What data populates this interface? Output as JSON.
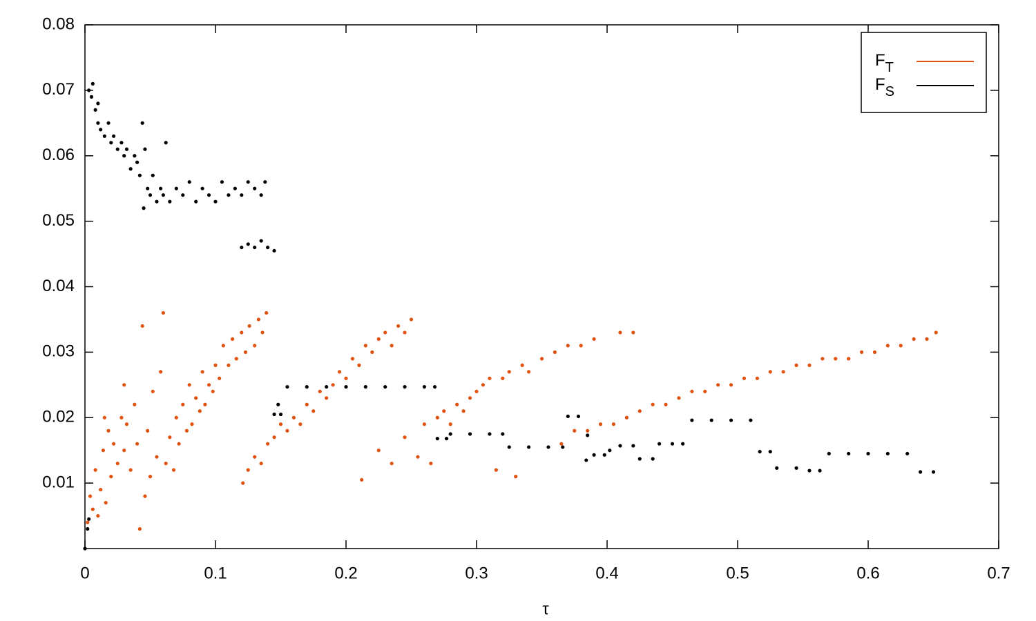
{
  "chart_data": {
    "type": "scatter",
    "x_label": "τ",
    "xlim": [
      0,
      0.7
    ],
    "xticks": [
      0,
      0.1,
      0.2,
      0.3,
      0.4,
      0.5,
      0.6,
      0.7
    ],
    "ylim": [
      0,
      0.08
    ],
    "yticks": [
      0.01,
      0.02,
      0.03,
      0.04,
      0.05,
      0.06,
      0.07,
      0.08
    ],
    "grid": false,
    "legend": "top-right",
    "series": [
      {
        "name": "FT",
        "color": "#e0520f",
        "x": [
          0.002,
          0.004,
          0.006,
          0.008,
          0.01,
          0.012,
          0.014,
          0.016,
          0.018,
          0.02,
          0.022,
          0.025,
          0.028,
          0.03,
          0.032,
          0.035,
          0.038,
          0.04,
          0.042,
          0.044,
          0.046,
          0.048,
          0.05,
          0.052,
          0.055,
          0.058,
          0.06,
          0.062,
          0.065,
          0.068,
          0.07,
          0.072,
          0.075,
          0.078,
          0.08,
          0.082,
          0.085,
          0.088,
          0.09,
          0.092,
          0.095,
          0.098,
          0.1,
          0.103,
          0.106,
          0.11,
          0.113,
          0.116,
          0.12,
          0.123,
          0.126,
          0.13,
          0.133,
          0.136,
          0.139,
          0.03,
          0.015,
          0.121,
          0.125,
          0.13,
          0.135,
          0.14,
          0.145,
          0.15,
          0.155,
          0.16,
          0.165,
          0.17,
          0.175,
          0.18,
          0.185,
          0.19,
          0.195,
          0.2,
          0.205,
          0.21,
          0.215,
          0.22,
          0.225,
          0.23,
          0.235,
          0.24,
          0.245,
          0.25,
          0.212,
          0.225,
          0.235,
          0.245,
          0.255,
          0.26,
          0.265,
          0.27,
          0.275,
          0.28,
          0.285,
          0.29,
          0.295,
          0.3,
          0.305,
          0.31,
          0.315,
          0.32,
          0.325,
          0.33,
          0.335,
          0.34,
          0.35,
          0.36,
          0.37,
          0.38,
          0.39,
          0.41,
          0.42,
          0.365,
          0.375,
          0.385,
          0.395,
          0.405,
          0.415,
          0.425,
          0.435,
          0.445,
          0.455,
          0.465,
          0.475,
          0.485,
          0.495,
          0.505,
          0.515,
          0.525,
          0.535,
          0.545,
          0.555,
          0.565,
          0.575,
          0.585,
          0.595,
          0.605,
          0.615,
          0.625,
          0.635,
          0.645,
          0.652
        ],
        "values": [
          0.004,
          0.008,
          0.006,
          0.012,
          0.005,
          0.009,
          0.015,
          0.007,
          0.018,
          0.011,
          0.016,
          0.013,
          0.02,
          0.015,
          0.019,
          0.012,
          0.022,
          0.016,
          0.003,
          0.034,
          0.008,
          0.018,
          0.011,
          0.024,
          0.014,
          0.027,
          0.036,
          0.013,
          0.017,
          0.012,
          0.02,
          0.016,
          0.022,
          0.018,
          0.025,
          0.019,
          0.023,
          0.021,
          0.027,
          0.022,
          0.025,
          0.024,
          0.028,
          0.026,
          0.031,
          0.028,
          0.032,
          0.029,
          0.033,
          0.03,
          0.034,
          0.031,
          0.035,
          0.033,
          0.036,
          0.025,
          0.02,
          0.01,
          0.012,
          0.014,
          0.013,
          0.016,
          0.017,
          0.019,
          0.018,
          0.02,
          0.019,
          0.022,
          0.021,
          0.024,
          0.023,
          0.025,
          0.027,
          0.026,
          0.029,
          0.028,
          0.031,
          0.03,
          0.032,
          0.033,
          0.031,
          0.034,
          0.033,
          0.035,
          0.0105,
          0.015,
          0.013,
          0.017,
          0.014,
          0.019,
          0.013,
          0.02,
          0.021,
          0.019,
          0.022,
          0.021,
          0.023,
          0.024,
          0.025,
          0.026,
          0.012,
          0.026,
          0.027,
          0.011,
          0.028,
          0.027,
          0.029,
          0.03,
          0.031,
          0.031,
          0.032,
          0.033,
          0.033,
          0.016,
          0.018,
          0.018,
          0.019,
          0.019,
          0.02,
          0.021,
          0.022,
          0.022,
          0.023,
          0.024,
          0.024,
          0.025,
          0.025,
          0.026,
          0.026,
          0.027,
          0.027,
          0.028,
          0.028,
          0.029,
          0.029,
          0.029,
          0.03,
          0.03,
          0.031,
          0.031,
          0.032,
          0.032,
          0.033
        ]
      },
      {
        "name": "FS",
        "color": "#000000",
        "x": [
          0.003,
          0.005,
          0.006,
          0.008,
          0.01,
          0.01,
          0.012,
          0.015,
          0.018,
          0.02,
          0.022,
          0.025,
          0.028,
          0.03,
          0.032,
          0.035,
          0.038,
          0.04,
          0.042,
          0.044,
          0.046,
          0.048,
          0.05,
          0.052,
          0.055,
          0.058,
          0.06,
          0.062,
          0.065,
          0.07,
          0.075,
          0.08,
          0.085,
          0.09,
          0.095,
          0.1,
          0.105,
          0.11,
          0.115,
          0.12,
          0.125,
          0.13,
          0.135,
          0.138,
          0.045,
          0.12,
          0.125,
          0.13,
          0.135,
          0.14,
          0.145,
          0,
          0.002,
          0.003,
          0.145,
          0.15,
          0.148,
          0.155,
          0.17,
          0.185,
          0.2,
          0.215,
          0.23,
          0.245,
          0.26,
          0.268,
          0.27,
          0.277,
          0.28,
          0.295,
          0.31,
          0.32,
          0.325,
          0.34,
          0.355,
          0.366,
          0.37,
          0.378,
          0.385,
          0.384,
          0.39,
          0.398,
          0.402,
          0.41,
          0.42,
          0.425,
          0.435,
          0.44,
          0.45,
          0.458,
          0.465,
          0.48,
          0.495,
          0.51,
          0.517,
          0.525,
          0.53,
          0.545,
          0.555,
          0.563,
          0.57,
          0.585,
          0.6,
          0.615,
          0.63,
          0.64,
          0.65
        ],
        "values": [
          0.07,
          0.069,
          0.071,
          0.067,
          0.068,
          0.065,
          0.064,
          0.063,
          0.065,
          0.062,
          0.063,
          0.061,
          0.062,
          0.06,
          0.061,
          0.058,
          0.06,
          0.059,
          0.057,
          0.065,
          0.061,
          0.055,
          0.054,
          0.057,
          0.053,
          0.055,
          0.054,
          0.062,
          0.053,
          0.055,
          0.054,
          0.056,
          0.053,
          0.055,
          0.054,
          0.053,
          0.056,
          0.054,
          0.055,
          0.054,
          0.056,
          0.055,
          0.054,
          0.056,
          0.052,
          0.046,
          0.0465,
          0.046,
          0.047,
          0.046,
          0.0455,
          0,
          0.003,
          0.0045,
          0.0205,
          0.0205,
          0.022,
          0.0247,
          0.0247,
          0.0247,
          0.0247,
          0.0247,
          0.0247,
          0.0247,
          0.0247,
          0.0247,
          0.0168,
          0.0168,
          0.0175,
          0.0175,
          0.0175,
          0.0175,
          0.0155,
          0.0155,
          0.0155,
          0.0155,
          0.0202,
          0.0202,
          0.0173,
          0.0135,
          0.0143,
          0.0143,
          0.015,
          0.0157,
          0.0157,
          0.0137,
          0.0137,
          0.016,
          0.016,
          0.016,
          0.0196,
          0.0196,
          0.0196,
          0.0196,
          0.0148,
          0.0148,
          0.0123,
          0.0123,
          0.0119,
          0.0119,
          0.0145,
          0.0145,
          0.0145,
          0.0145,
          0.0145,
          0.0117,
          0.0117
        ]
      }
    ]
  }
}
